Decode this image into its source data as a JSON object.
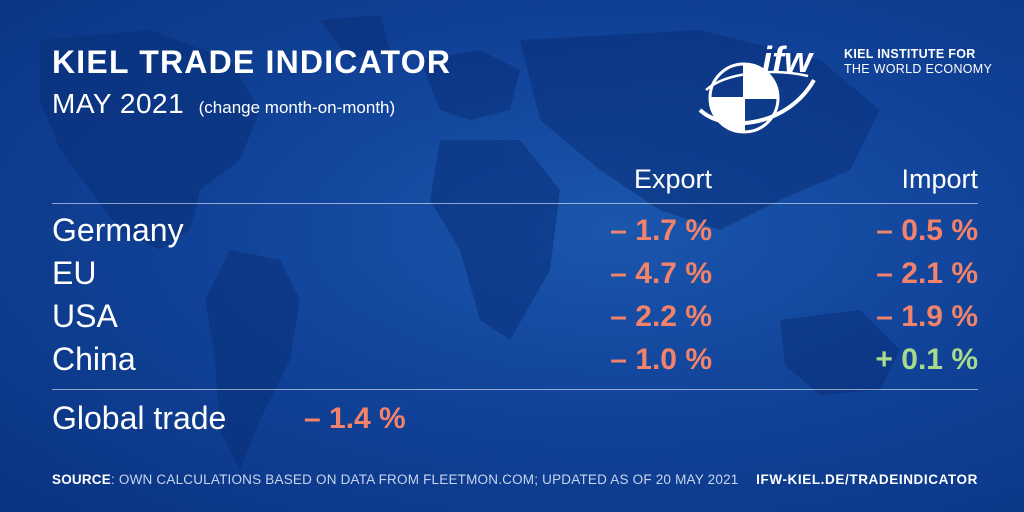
{
  "header": {
    "title": "KIEL TRADE INDICATOR",
    "month": "MAY 2021",
    "note": "(change month-on-month)"
  },
  "logo": {
    "mark": "ifw",
    "line1": "KIEL INSTITUTE FOR",
    "line2": "THE WORLD ECONOMY",
    "icon": "globe-icon"
  },
  "columns": {
    "export": "Export",
    "import": "Import"
  },
  "rows": [
    {
      "country": "Germany",
      "export": "– 1.7 %",
      "import": "– 0.5 %"
    },
    {
      "country": "EU",
      "export": "– 4.7 %",
      "import": "– 2.1 %"
    },
    {
      "country": "USA",
      "export": "– 2.2 %",
      "import": "– 1.9 %"
    },
    {
      "country": "China",
      "export": "– 1.0 %",
      "import": "+ 0.1 %"
    }
  ],
  "global": {
    "label": "Global trade",
    "value": "– 1.4 %"
  },
  "footer": {
    "source_label": "SOURCE",
    "source_text": ": OWN CALCULATIONS BASED ON DATA FROM FLEETMON.COM; UPDATED AS OF 20 MAY 2021",
    "url": "IFW-KIEL.DE/TRADEINDICATOR"
  },
  "colors": {
    "background": "#114399",
    "negative": "#f2836a",
    "positive": "#a9d98e",
    "text": "#ffffff"
  }
}
